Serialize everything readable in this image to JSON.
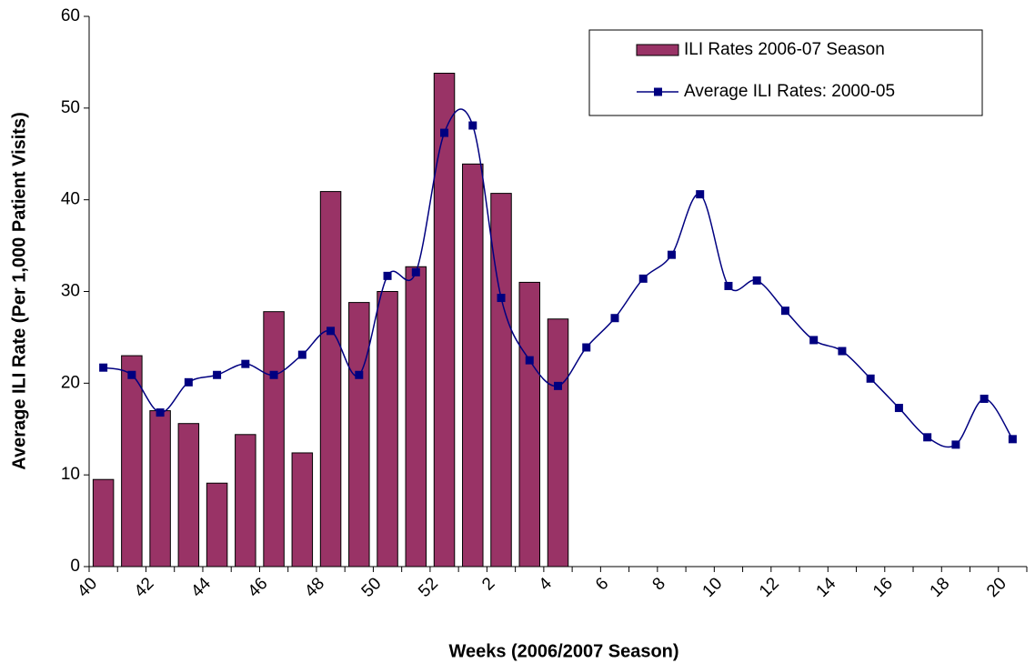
{
  "chart_data": {
    "type": "combo",
    "x_label": "Weeks (2006/2007 Season)",
    "y_label": "Average ILI Rate (Per 1,000 Patient Visits)",
    "categories": [
      "40",
      null,
      "42",
      null,
      "44",
      null,
      "46",
      null,
      "48",
      null,
      "50",
      null,
      "52",
      null,
      "2",
      null,
      "4",
      null,
      "6",
      null,
      "8",
      null,
      "10",
      null,
      "12",
      null,
      "14",
      null,
      "16",
      null,
      "18",
      null,
      "20"
    ],
    "series": [
      {
        "name": "ILI Rates 2006-07 Season",
        "type": "bar",
        "color": "#993366",
        "values": [
          9.5,
          23,
          17,
          15.6,
          9.1,
          14.4,
          27.8,
          12.4,
          40.9,
          28.8,
          30,
          32.7,
          53.8,
          43.9,
          40.7,
          31,
          27,
          null,
          null,
          null,
          null,
          null,
          null,
          null,
          null,
          null,
          null,
          null,
          null,
          null,
          null,
          null,
          null
        ]
      },
      {
        "name": "Average ILI Rates: 2000-05",
        "type": "line",
        "color": "#000080",
        "values": [
          21.7,
          20.9,
          16.8,
          20.1,
          20.9,
          22.1,
          20.9,
          23.1,
          25.7,
          20.9,
          31.7,
          32.1,
          47.3,
          48.1,
          29.3,
          22.5,
          19.7,
          23.9,
          27.1,
          31.4,
          34,
          40.6,
          30.6,
          31.2,
          27.9,
          24.7,
          23.5,
          20.5,
          17.3,
          14.1,
          13.3,
          18.3,
          13.9
        ]
      }
    ],
    "ylim": [
      0,
      60
    ],
    "yticks": [
      0,
      10,
      20,
      30,
      40,
      50,
      60
    ],
    "legend": "top-right"
  }
}
